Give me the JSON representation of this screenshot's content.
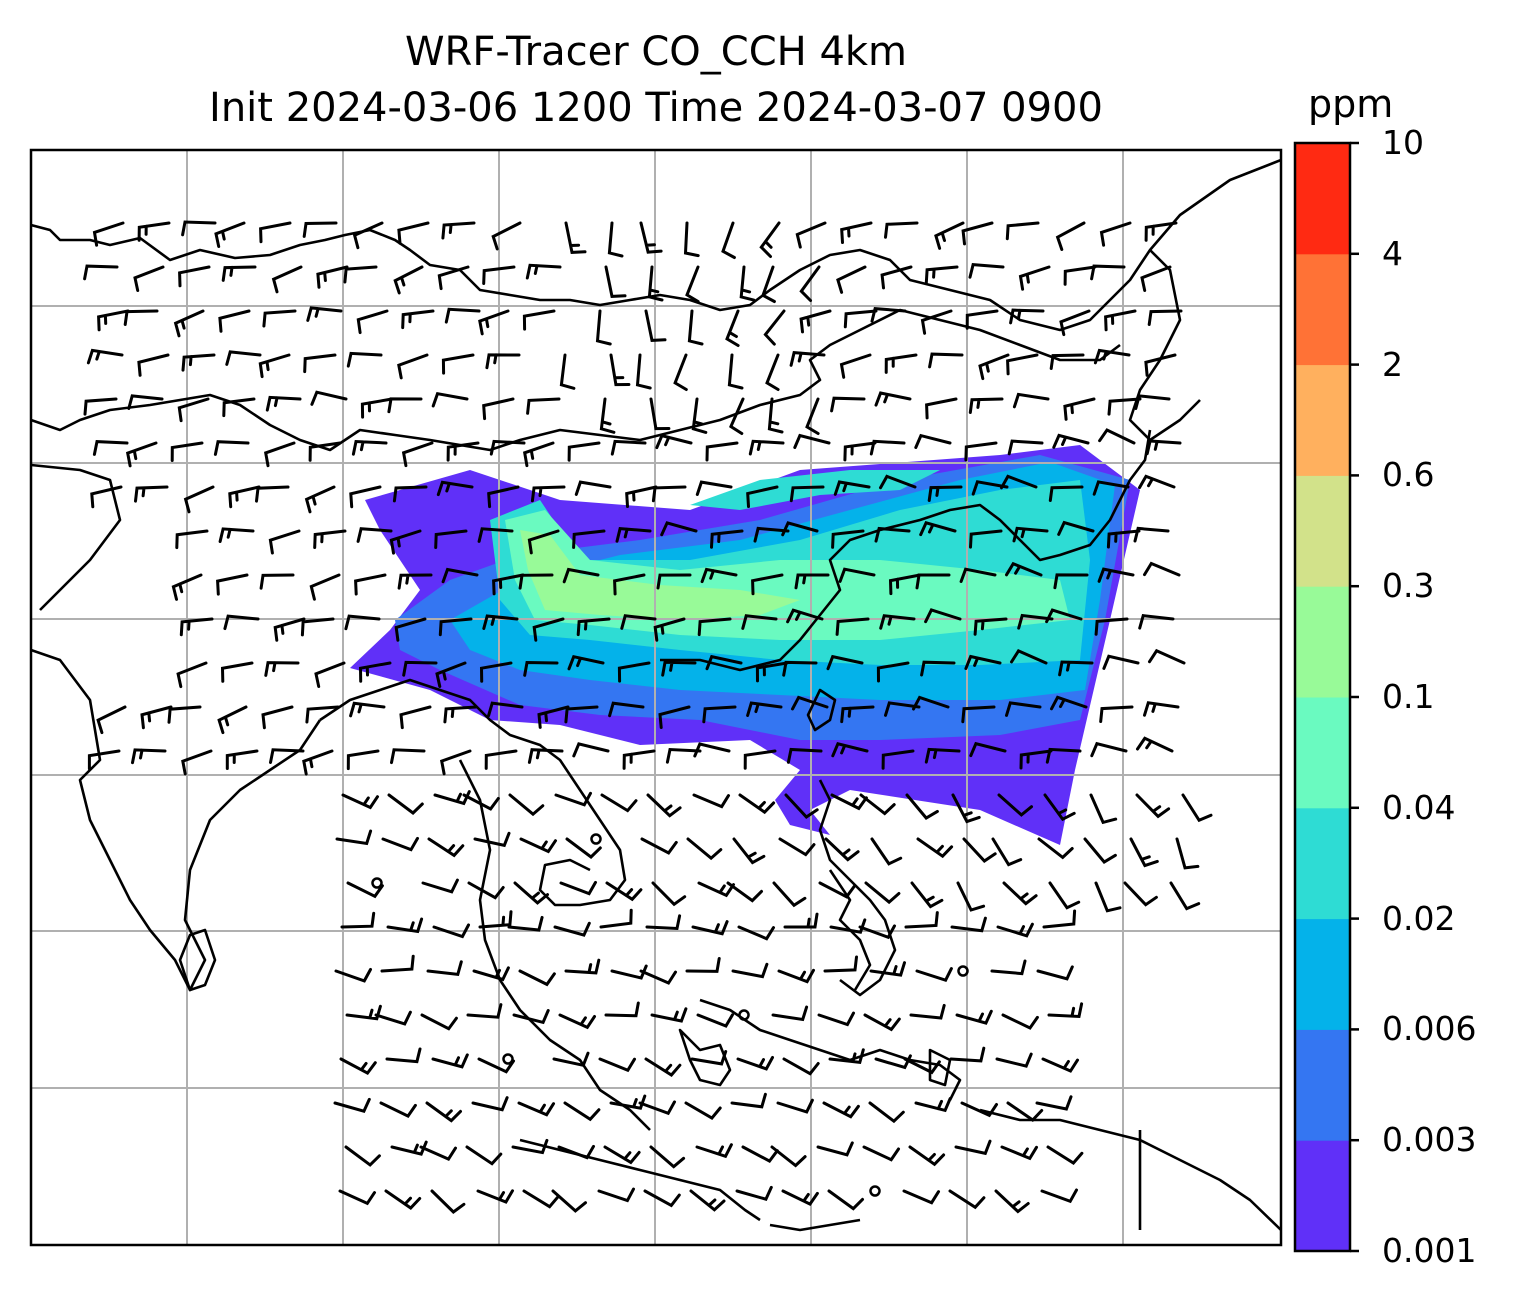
{
  "title": {
    "line1": "WRF-Tracer CO_CCH 4km",
    "line2": "Init 2024-03-06 1200 Time 2024-03-07 0900"
  },
  "colorbar": {
    "unit": "ppm",
    "ticks": [
      "10",
      "4",
      "2",
      "0.6",
      "0.3",
      "0.1",
      "0.04",
      "0.02",
      "0.006",
      "0.003",
      "0.001"
    ],
    "colors": [
      "#6030f8",
      "#3476f2",
      "#04b2ea",
      "#2edcd4",
      "#6afac0",
      "#98fa98",
      "#d2e28a",
      "#ffb05e",
      "#ff7236",
      "#ff2a12"
    ]
  },
  "chart_data": {
    "type": "heatmap",
    "title": "WRF-Tracer CO_CCH 4km",
    "subtitle": "Init 2024-03-06 1200 Time 2024-03-07 0900",
    "variable": "CO_CCH",
    "unit": "ppm",
    "levels": [
      0.001,
      0.003,
      0.006,
      0.02,
      0.04,
      0.1,
      0.3,
      0.6,
      2,
      4,
      10
    ],
    "overlays": [
      "wind barbs",
      "coastlines",
      "country borders",
      "lat/lon gridlines"
    ],
    "grid": true,
    "legend": "colorbar right"
  }
}
